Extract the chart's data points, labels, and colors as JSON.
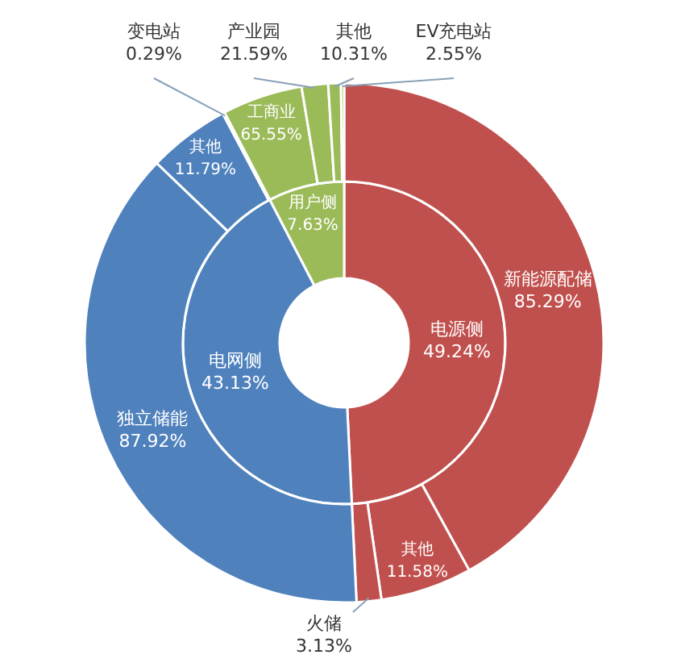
{
  "chart_data": {
    "type": "other",
    "categories": [
      "电源侧",
      "电网侧",
      "用户侧",
      "新能源配储",
      "其他",
      "火储",
      "独立储能",
      "其他",
      "变电站",
      "工商业",
      "产业园",
      "其他",
      "EV充电站"
    ],
    "series": [
      {
        "colors": [
          "#c0504d",
          "#4f81bd",
          "#9bbb59",
          null,
          null,
          null,
          null,
          null,
          null,
          null,
          null,
          null,
          null
        ],
        "values": [
          49.24,
          43.13,
          7.63,
          null,
          null,
          null,
          null,
          null,
          null,
          null,
          null,
          null,
          null
        ],
        "value_labels": [
          "49.24%",
          "43.13%",
          "7.63%",
          null,
          null,
          null,
          null,
          null,
          null,
          null,
          null,
          null,
          null
        ]
      },
      {
        "colors": [
          null,
          null,
          null,
          "#c0504d",
          "#c0504d",
          "#c0504d",
          "#4f81bd",
          "#4f81bd",
          "#4f81bd",
          "#9bbb59",
          "#9bbb59",
          "#9bbb59",
          "#9bbb59"
        ],
        "values": [
          null,
          null,
          null,
          85.29,
          11.58,
          3.13,
          87.92,
          11.79,
          0.29,
          65.55,
          21.59,
          10.31,
          2.55
        ],
        "value_labels": [
          null,
          null,
          null,
          "85.29%",
          "11.58%",
          "3.13%",
          "87.92%",
          "11.79%",
          "0.29%",
          "65.55%",
          "21.59%",
          "10.31%",
          "2.55%"
        ]
      }
    ]
  }
}
